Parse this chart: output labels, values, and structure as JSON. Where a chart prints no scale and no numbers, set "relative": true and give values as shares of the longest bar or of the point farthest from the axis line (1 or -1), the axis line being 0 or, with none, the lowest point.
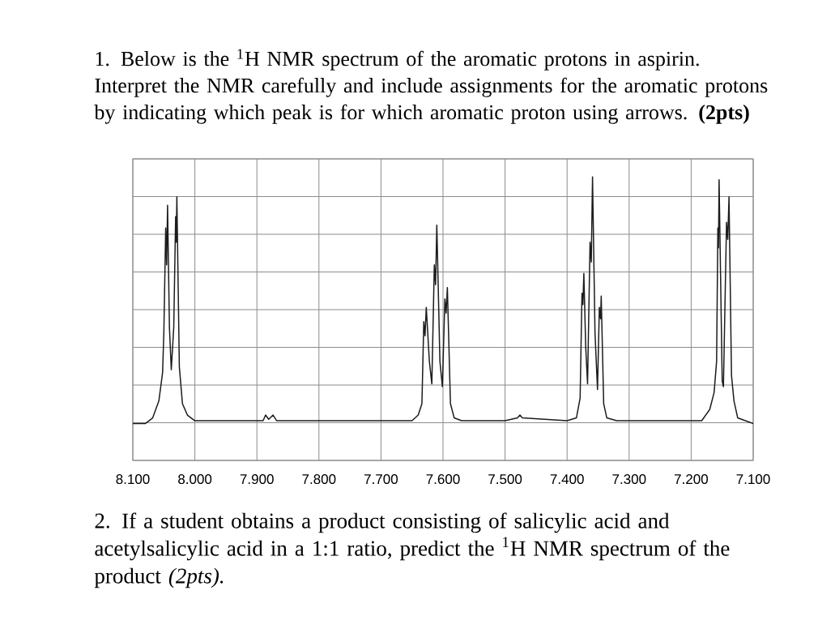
{
  "chart_data": {
    "type": "line",
    "title": "1. Below is the $^{1}$H NMR spectrum of the aromatic protons in aspirin. Interpret the NMR carefully and include assignments for the aromatic protons by indicating which peak is for which aromatic proton using arrows. **(2pts)**",
    "annotations": [
      "2. If a student obtains a product consisting of salicylic acid and acetylsalicylic acid in a 1:1 ratio, predict the $^{1}$H NMR spectrum of the product *(2pts).*"
    ],
    "relative": true,
    "color": "#1c1c1c",
    "x": [
      8.1,
      8.08,
      8.068,
      8.058,
      8.052,
      8.05,
      8.047,
      8.0455,
      8.044,
      8.041,
      8.038,
      8.034,
      8.031,
      8.03,
      8.029,
      8.025,
      8.02,
      8.012,
      8.0,
      7.95,
      7.9,
      7.89,
      7.886,
      7.881,
      7.874,
      7.868,
      7.8,
      7.7,
      7.65,
      7.64,
      7.634,
      7.631,
      7.629,
      7.627,
      7.622,
      7.618,
      7.614,
      7.612,
      7.61,
      7.605,
      7.601,
      7.597,
      7.595,
      7.593,
      7.588,
      7.582,
      7.57,
      7.5,
      7.48,
      7.476,
      7.472,
      7.4,
      7.385,
      7.379,
      7.376,
      7.3745,
      7.373,
      7.37,
      7.367,
      7.363,
      7.361,
      7.359,
      7.355,
      7.351,
      7.348,
      7.346,
      7.345,
      7.341,
      7.336,
      7.32,
      7.25,
      7.2,
      7.183,
      7.17,
      7.163,
      7.159,
      7.157,
      7.156,
      7.155,
      7.15,
      7.148,
      7.143,
      7.141,
      7.139,
      7.135,
      7.131,
      7.125,
      7.1
    ],
    "values": [
      0.13,
      0.13,
      0.15,
      0.21,
      0.31,
      0.45,
      0.82,
      0.69,
      0.9,
      0.47,
      0.32,
      0.47,
      0.86,
      0.77,
      0.93,
      0.33,
      0.2,
      0.16,
      0.14,
      0.14,
      0.14,
      0.14,
      0.16,
      0.145,
      0.16,
      0.14,
      0.14,
      0.14,
      0.14,
      0.16,
      0.2,
      0.49,
      0.44,
      0.54,
      0.35,
      0.27,
      0.69,
      0.62,
      0.83,
      0.35,
      0.26,
      0.57,
      0.52,
      0.61,
      0.2,
      0.15,
      0.14,
      0.14,
      0.15,
      0.16,
      0.15,
      0.14,
      0.15,
      0.22,
      0.59,
      0.55,
      0.66,
      0.4,
      0.27,
      0.77,
      0.7,
      1.0,
      0.45,
      0.25,
      0.54,
      0.5,
      0.58,
      0.2,
      0.15,
      0.14,
      0.14,
      0.14,
      0.14,
      0.18,
      0.24,
      0.35,
      0.82,
      0.75,
      0.99,
      0.28,
      0.26,
      0.84,
      0.78,
      0.93,
      0.3,
      0.21,
      0.15,
      0.13
    ],
    "xlim": [
      8.1,
      7.1
    ],
    "xticks": [
      {
        "value": 8.1,
        "label": "8.100"
      },
      {
        "value": 8.0,
        "label": "8.000"
      },
      {
        "value": 7.9,
        "label": "7.900"
      },
      {
        "value": 7.8,
        "label": "7.800"
      },
      {
        "value": 7.7,
        "label": "7.700"
      },
      {
        "value": 7.6,
        "label": "7.600"
      },
      {
        "value": 7.5,
        "label": "7.500"
      },
      {
        "value": 7.4,
        "label": "7.400"
      },
      {
        "value": 7.3,
        "label": "7.300"
      },
      {
        "value": 7.2,
        "label": "7.200"
      },
      {
        "value": 7.1,
        "label": "7.100"
      }
    ],
    "grid": true
  }
}
